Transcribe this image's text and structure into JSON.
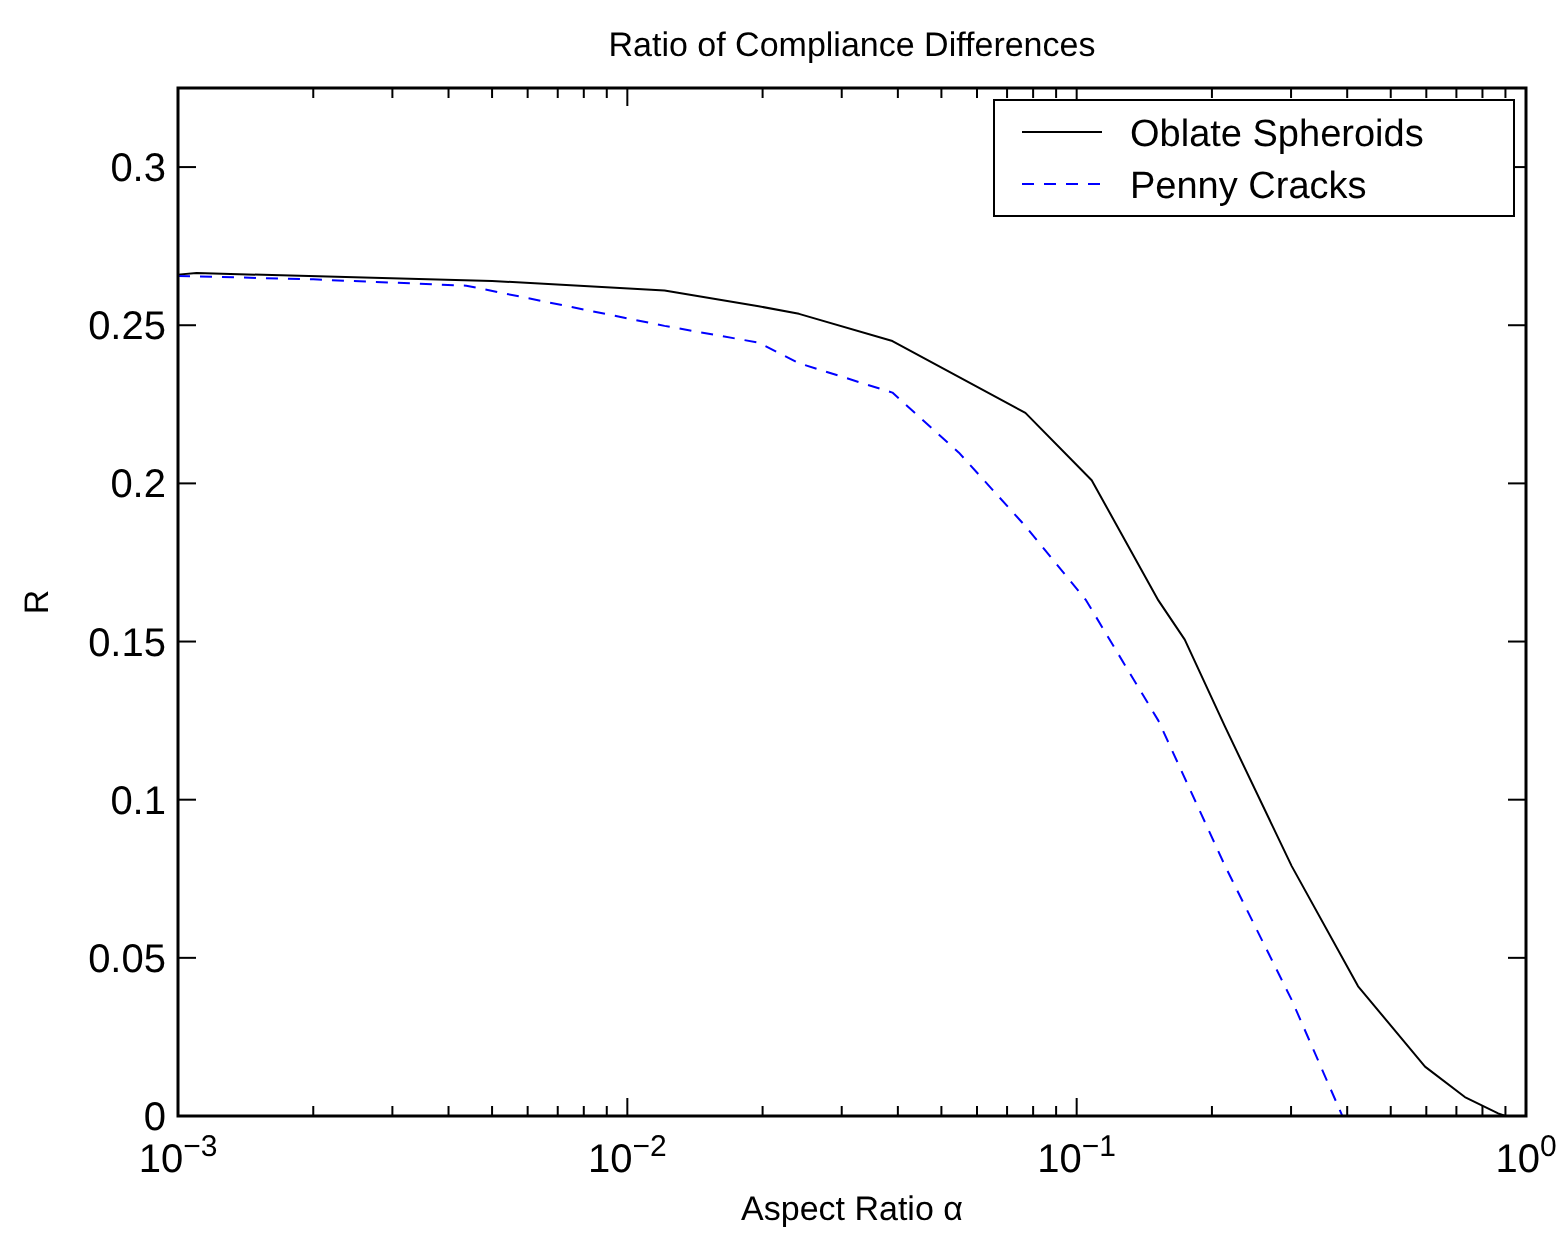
{
  "chart_data": {
    "type": "line",
    "title": "Ratio of Compliance Differences",
    "xlabel": "Aspect Ratio α",
    "ylabel": "R",
    "log": "x",
    "xlim": [
      0.001,
      1
    ],
    "ylim": [
      0,
      0.325
    ],
    "xticks": [
      {
        "value": 0.001,
        "label": "10$^{−3}$"
      },
      {
        "value": 0.002,
        "label": null
      },
      {
        "value": 0.003,
        "label": null
      },
      {
        "value": 0.004,
        "label": null
      },
      {
        "value": 0.005,
        "label": null
      },
      {
        "value": 0.006,
        "label": null
      },
      {
        "value": 0.007,
        "label": null
      },
      {
        "value": 0.008,
        "label": null
      },
      {
        "value": 0.009,
        "label": null
      },
      {
        "value": 0.01,
        "label": "10$^{−2}$"
      },
      {
        "value": 0.02,
        "label": null
      },
      {
        "value": 0.03,
        "label": null
      },
      {
        "value": 0.04,
        "label": null
      },
      {
        "value": 0.05,
        "label": null
      },
      {
        "value": 0.06,
        "label": null
      },
      {
        "value": 0.07,
        "label": null
      },
      {
        "value": 0.08,
        "label": null
      },
      {
        "value": 0.09,
        "label": null
      },
      {
        "value": 0.1,
        "label": "10$^{−1}$"
      },
      {
        "value": 0.2,
        "label": null
      },
      {
        "value": 0.3,
        "label": null
      },
      {
        "value": 0.4,
        "label": null
      },
      {
        "value": 0.5,
        "label": null
      },
      {
        "value": 0.6,
        "label": null
      },
      {
        "value": 0.7,
        "label": null
      },
      {
        "value": 0.8,
        "label": null
      },
      {
        "value": 0.9,
        "label": null
      },
      {
        "value": 1,
        "label": "10$^{0}$"
      }
    ],
    "yticks": [
      0,
      0.05,
      0.1,
      0.15,
      0.2,
      0.25,
      0.3
    ],
    "grid": false,
    "legend": "top right",
    "marker": "none",
    "series": [
      {
        "name": "Oblate Spheroids",
        "color": "#000000",
        "line_style": "solid",
        "x": [
          0.001,
          0.0011,
          0.005,
          0.0121,
          0.0196,
          0.0241,
          0.0389,
          0.0769,
          0.108,
          0.152,
          0.174,
          0.214,
          0.301,
          0.423,
          0.596,
          0.731,
          0.867,
          0.9
        ],
        "values": [
          0.266,
          0.2665,
          0.264,
          0.261,
          0.256,
          0.2536,
          0.245,
          0.2223,
          0.201,
          0.163,
          0.1506,
          0.123,
          0.079,
          0.041,
          0.0156,
          0.006,
          0.0008,
          0
        ]
      },
      {
        "name": "Penny Cracks",
        "color": "#0000ff",
        "line_style": "dashed",
        "x": [
          0.001,
          0.002,
          0.00438,
          0.0121,
          0.0196,
          0.0241,
          0.0389,
          0.0547,
          0.0769,
          0.105,
          0.116,
          0.152,
          0.214,
          0.301,
          0.388,
          0.39
        ],
        "values": [
          0.2656,
          0.2645,
          0.2625,
          0.2498,
          0.2445,
          0.238,
          0.2287,
          0.2097,
          0.1865,
          0.163,
          0.1527,
          0.125,
          0.079,
          0.0367,
          0.0008,
          0
        ]
      }
    ]
  }
}
